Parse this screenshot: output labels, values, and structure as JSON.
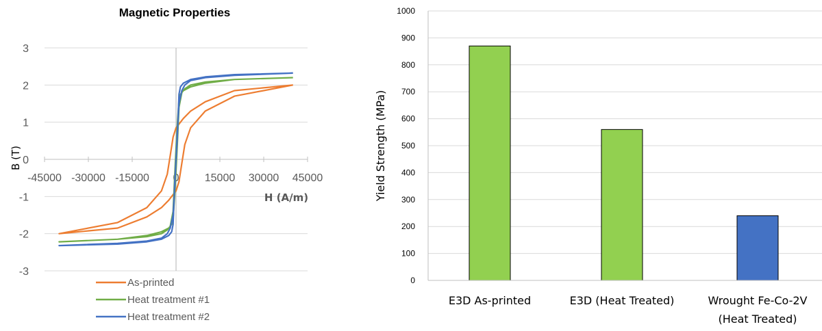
{
  "chart_data": [
    {
      "type": "line",
      "title": "Magnetic Properties",
      "xlabel": "H (A/m)",
      "ylabel": "B (T)",
      "xlim": [
        -45000,
        45000
      ],
      "ylim": [
        -3,
        3
      ],
      "x_ticks": [
        "-45000",
        "-30000",
        "-15000",
        "0",
        "15000",
        "30000",
        "45000"
      ],
      "y_ticks": [
        "3",
        "2",
        "1",
        "0",
        "-1",
        "-2",
        "-3"
      ],
      "grid": "horizontal",
      "legend_position": "bottom",
      "series": [
        {
          "name": "As-printed",
          "color": "#ED7D31",
          "x": [
            40000,
            20000,
            10000,
            5000,
            2500,
            1000,
            0,
            -1000,
            -2000,
            -3000,
            -5000,
            -10000,
            -20000,
            -40000,
            -20000,
            -10000,
            -5000,
            -2500,
            -1000,
            0,
            1000,
            2000,
            3000,
            5000,
            10000,
            20000,
            40000
          ],
          "y": [
            2.0,
            1.85,
            1.55,
            1.3,
            1.1,
            0.95,
            0.85,
            0.6,
            0.1,
            -0.4,
            -0.85,
            -1.3,
            -1.7,
            -2.0,
            -1.85,
            -1.55,
            -1.3,
            -1.1,
            -0.95,
            -0.85,
            -0.6,
            -0.1,
            0.4,
            0.85,
            1.3,
            1.7,
            2.0
          ]
        },
        {
          "name": "Heat treatment #1",
          "color": "#70AD47",
          "x": [
            40000,
            20000,
            10000,
            5000,
            2500,
            1500,
            1000,
            500,
            0,
            -500,
            -1000,
            -2000,
            -3000,
            -5000,
            -10000,
            -20000,
            -40000,
            -20000,
            -10000,
            -5000,
            -2500,
            -1500,
            -1000,
            -500,
            0,
            500,
            1000,
            2000,
            3000,
            5000,
            10000,
            20000,
            40000
          ],
          "y": [
            2.2,
            2.15,
            2.05,
            1.95,
            1.85,
            1.75,
            1.6,
            1.0,
            0.3,
            -0.5,
            -1.4,
            -1.8,
            -1.9,
            -2.0,
            -2.08,
            -2.15,
            -2.22,
            -2.15,
            -2.05,
            -1.95,
            -1.85,
            -1.75,
            -1.6,
            -1.0,
            -0.3,
            0.5,
            1.4,
            1.8,
            1.9,
            2.0,
            2.08,
            2.15,
            2.2
          ]
        },
        {
          "name": "Heat treatment #2",
          "color": "#4472C4",
          "x": [
            40000,
            20000,
            10000,
            5000,
            2500,
            1500,
            1000,
            500,
            0,
            -500,
            -1000,
            -2000,
            -3000,
            -5000,
            -10000,
            -20000,
            -40000,
            -20000,
            -10000,
            -5000,
            -2500,
            -1500,
            -1000,
            -500,
            0,
            500,
            1000,
            2000,
            3000,
            5000,
            10000,
            20000,
            40000
          ],
          "y": [
            2.32,
            2.28,
            2.22,
            2.15,
            2.05,
            1.95,
            1.75,
            0.7,
            0.0,
            -0.8,
            -1.5,
            -1.85,
            -2.0,
            -2.12,
            -2.2,
            -2.26,
            -2.32,
            -2.28,
            -2.22,
            -2.15,
            -2.05,
            -1.95,
            -1.75,
            -0.7,
            0.0,
            0.8,
            1.5,
            1.85,
            2.0,
            2.12,
            2.2,
            2.26,
            2.32
          ]
        }
      ]
    },
    {
      "type": "bar",
      "title": "",
      "xlabel": "",
      "ylabel": "Yield Strength (MPa)",
      "ylim": [
        0,
        1000
      ],
      "y_ticks": [
        "0",
        "100",
        "200",
        "300",
        "400",
        "500",
        "600",
        "700",
        "800",
        "900",
        "1000"
      ],
      "grid": "horizontal",
      "categories": [
        {
          "line1": "E3D As-printed",
          "line2": ""
        },
        {
          "line1": "E3D (Heat Treated)",
          "line2": ""
        },
        {
          "line1": "Wrought Fe-Co-2V",
          "line2": "(Heat Treated)"
        }
      ],
      "values": [
        870,
        560,
        240
      ],
      "bar_colors": [
        "#92D050",
        "#92D050",
        "#4472C4"
      ]
    }
  ]
}
